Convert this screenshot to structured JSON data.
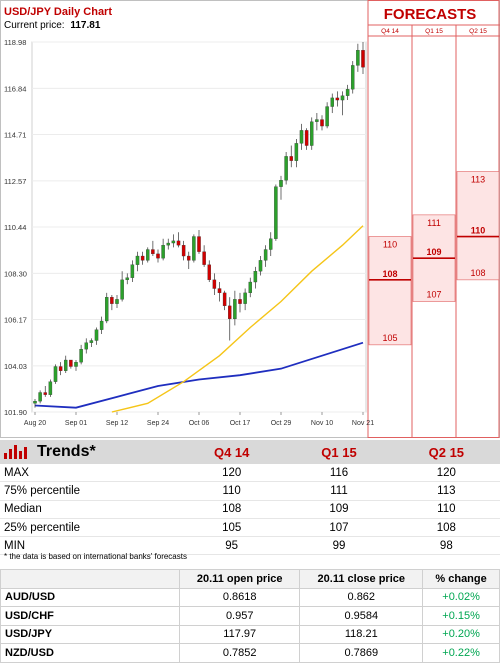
{
  "chart_data": {
    "type": "candlestick",
    "title": "USD/JPY Daily Chart",
    "current_price_label": "Current price:",
    "current_price": "117.81",
    "y_ticks": [
      "118.98",
      "116.84",
      "114.71",
      "112.57",
      "110.44",
      "108.30",
      "106.17",
      "104.03",
      "101.90"
    ],
    "y_tick_values": [
      118.98,
      116.84,
      114.71,
      112.57,
      110.44,
      108.3,
      106.17,
      104.03,
      101.9
    ],
    "ylim": [
      101.9,
      118.98
    ],
    "x_ticks": [
      "Aug 20",
      "Sep 01",
      "Sep 12",
      "Sep 24",
      "Oct 06",
      "Oct 17",
      "Oct 29",
      "Nov 10",
      "Nov 21"
    ],
    "x_tick_positions": [
      0,
      8,
      16,
      24,
      32,
      40,
      48,
      56,
      64
    ],
    "candles": [
      [
        102.3,
        102.5,
        102.1,
        102.4
      ],
      [
        102.4,
        102.9,
        102.3,
        102.8
      ],
      [
        102.8,
        103.1,
        102.6,
        102.7
      ],
      [
        102.7,
        103.4,
        102.6,
        103.3
      ],
      [
        103.3,
        104.1,
        103.2,
        104.0
      ],
      [
        104.0,
        104.2,
        103.6,
        103.8
      ],
      [
        103.8,
        104.5,
        103.7,
        104.3
      ],
      [
        104.3,
        104.3,
        103.9,
        104.0
      ],
      [
        104.0,
        104.3,
        103.8,
        104.2
      ],
      [
        104.2,
        105.0,
        104.1,
        104.8
      ],
      [
        104.8,
        105.3,
        104.6,
        105.1
      ],
      [
        105.1,
        105.3,
        104.9,
        105.2
      ],
      [
        105.2,
        105.8,
        105.0,
        105.7
      ],
      [
        105.7,
        106.3,
        105.5,
        106.1
      ],
      [
        106.1,
        107.4,
        106.0,
        107.2
      ],
      [
        107.2,
        107.3,
        106.6,
        106.9
      ],
      [
        106.9,
        107.3,
        106.7,
        107.1
      ],
      [
        107.1,
        108.4,
        107.0,
        108.0
      ],
      [
        108.0,
        108.3,
        107.8,
        108.1
      ],
      [
        108.1,
        108.9,
        107.9,
        108.7
      ],
      [
        108.7,
        109.3,
        108.4,
        109.1
      ],
      [
        109.1,
        109.3,
        108.7,
        108.9
      ],
      [
        108.9,
        109.5,
        108.8,
        109.4
      ],
      [
        109.4,
        109.8,
        109.1,
        109.2
      ],
      [
        109.2,
        109.4,
        108.8,
        109.0
      ],
      [
        109.0,
        109.9,
        108.9,
        109.6
      ],
      [
        109.6,
        109.9,
        109.4,
        109.7
      ],
      [
        109.7,
        110.1,
        109.5,
        109.8
      ],
      [
        109.8,
        110.2,
        109.5,
        109.6
      ],
      [
        109.6,
        109.8,
        108.9,
        109.1
      ],
      [
        109.1,
        109.3,
        108.5,
        108.9
      ],
      [
        108.9,
        110.1,
        108.8,
        110.0
      ],
      [
        110.0,
        110.3,
        109.2,
        109.3
      ],
      [
        109.3,
        109.6,
        108.6,
        108.7
      ],
      [
        108.7,
        108.9,
        107.9,
        108.0
      ],
      [
        108.0,
        108.3,
        107.3,
        107.6
      ],
      [
        107.6,
        107.9,
        107.0,
        107.4
      ],
      [
        107.4,
        107.5,
        106.6,
        106.8
      ],
      [
        106.8,
        107.2,
        105.2,
        106.2
      ],
      [
        106.2,
        107.5,
        105.9,
        107.1
      ],
      [
        107.1,
        107.4,
        106.5,
        106.9
      ],
      [
        106.9,
        107.6,
        106.6,
        107.4
      ],
      [
        107.4,
        108.1,
        107.2,
        107.9
      ],
      [
        107.9,
        108.6,
        107.6,
        108.4
      ],
      [
        108.4,
        109.1,
        108.2,
        108.9
      ],
      [
        108.9,
        109.6,
        108.6,
        109.4
      ],
      [
        109.4,
        110.2,
        109.1,
        109.9
      ],
      [
        109.9,
        112.4,
        109.8,
        112.3
      ],
      [
        112.3,
        112.8,
        111.7,
        112.6
      ],
      [
        112.6,
        113.9,
        112.4,
        113.7
      ],
      [
        113.7,
        114.2,
        113.2,
        113.5
      ],
      [
        113.5,
        114.5,
        113.2,
        114.3
      ],
      [
        114.3,
        115.2,
        114.0,
        114.9
      ],
      [
        114.9,
        115.0,
        114.0,
        114.2
      ],
      [
        114.2,
        115.5,
        114.0,
        115.3
      ],
      [
        115.3,
        115.7,
        114.9,
        115.4
      ],
      [
        115.4,
        115.6,
        114.9,
        115.1
      ],
      [
        115.1,
        116.2,
        115.0,
        116.0
      ],
      [
        116.0,
        116.6,
        115.7,
        116.4
      ],
      [
        116.4,
        116.7,
        116.0,
        116.3
      ],
      [
        116.3,
        116.7,
        115.6,
        116.5
      ],
      [
        116.5,
        117.0,
        116.3,
        116.8
      ],
      [
        116.8,
        118.1,
        116.6,
        117.9
      ],
      [
        117.9,
        118.9,
        117.6,
        118.6
      ],
      [
        118.6,
        118.98,
        117.5,
        117.81
      ]
    ],
    "ma_short": [
      [
        15,
        101.9
      ],
      [
        22,
        102.3
      ],
      [
        29,
        103.3
      ],
      [
        36,
        104.5
      ],
      [
        42,
        105.8
      ],
      [
        48,
        107.0
      ],
      [
        54,
        108.4
      ],
      [
        60,
        109.6
      ],
      [
        64,
        110.5
      ]
    ],
    "ma_long": [
      [
        0,
        102.2
      ],
      [
        8,
        102.1
      ],
      [
        16,
        102.6
      ],
      [
        24,
        103.1
      ],
      [
        32,
        103.4
      ],
      [
        40,
        103.6
      ],
      [
        48,
        103.9
      ],
      [
        56,
        104.5
      ],
      [
        64,
        105.1
      ]
    ],
    "forecast_title": "FORECASTS",
    "forecast_periods": [
      "Q4 14",
      "Q1 15",
      "Q2 15"
    ],
    "forecast_ranges": [
      {
        "low": 105,
        "median": 108,
        "high": 110,
        "low_label": "105",
        "median_label": "108",
        "high_label": "110"
      },
      {
        "low": 107,
        "median": 109,
        "high": 111,
        "low_label": "107",
        "median_label": "109",
        "high_label": "111"
      },
      {
        "low": 108,
        "median": 110,
        "high": 113,
        "low_label": "108",
        "median_label": "110",
        "high_label": "113"
      }
    ]
  },
  "colors": {
    "up": "#2ca02c",
    "down": "#d00000",
    "ma_short": "#f5c518",
    "ma_long": "#1f2ebf",
    "forecast_line": "#e06060",
    "forecast_fill": "#fde4e4",
    "median_line": "#c00000",
    "accent": "#c00000",
    "positive": "#00a651"
  },
  "trends": {
    "title": "Trends*",
    "columns": [
      "Q4 14",
      "Q1 15",
      "Q2 15"
    ],
    "rows": [
      {
        "label": "MAX",
        "values": [
          "120",
          "116",
          "120"
        ]
      },
      {
        "label": "75% percentile",
        "values": [
          "110",
          "111",
          "113"
        ]
      },
      {
        "label": "Median",
        "values": [
          "108",
          "109",
          "110"
        ]
      },
      {
        "label": "25% percentile",
        "values": [
          "105",
          "107",
          "108"
        ]
      },
      {
        "label": "MIN",
        "values": [
          "95",
          "99",
          "98"
        ]
      }
    ],
    "note": "* the data is based on international banks' forecasts"
  },
  "fx_table": {
    "headers": [
      "20.11 open price",
      "20.11 close price",
      "% change"
    ],
    "rows": [
      {
        "pair": "AUD/USD",
        "open": "0.8618",
        "close": "0.862",
        "change": "+0.02%"
      },
      {
        "pair": "USD/CHF",
        "open": "0.957",
        "close": "0.9584",
        "change": "+0.15%"
      },
      {
        "pair": "USD/JPY",
        "open": "117.97",
        "close": "118.21",
        "change": "+0.20%"
      },
      {
        "pair": "NZD/USD",
        "open": "0.7852",
        "close": "0.7869",
        "change": "+0.22%"
      }
    ]
  }
}
